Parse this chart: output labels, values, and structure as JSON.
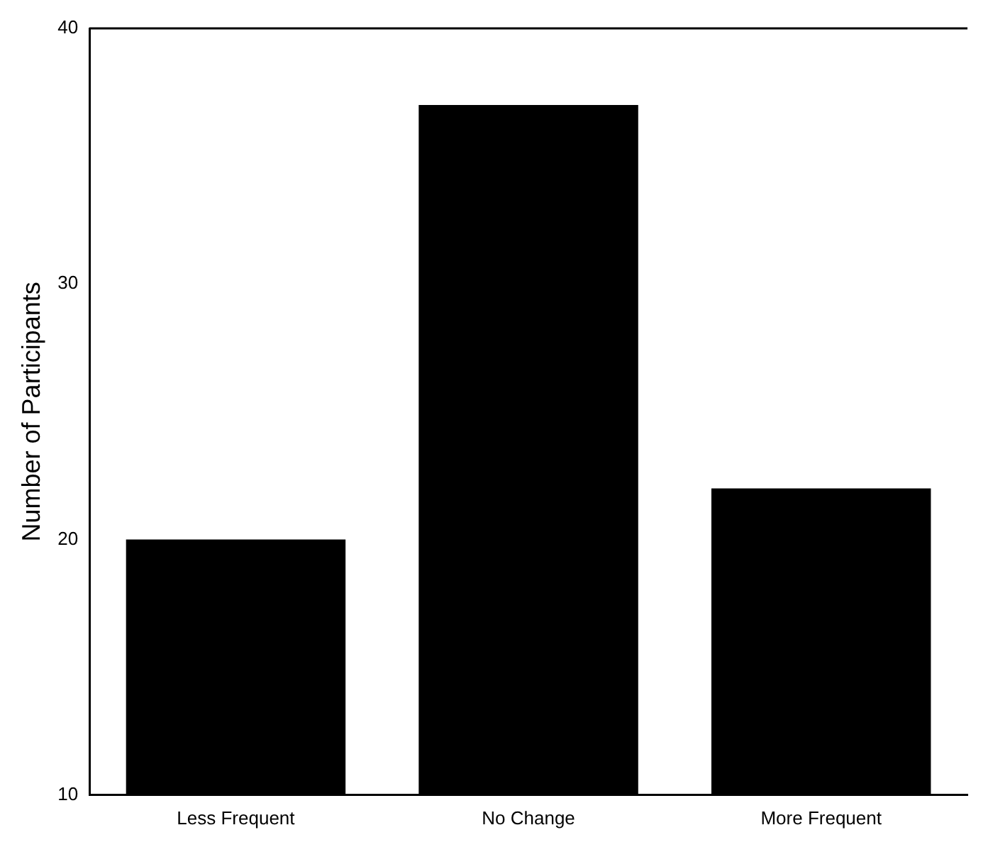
{
  "chart_data": {
    "type": "bar",
    "ylabel": "Number of Participants",
    "categories": [
      "Less Frequent",
      "No Change",
      "More Frequent"
    ],
    "values": [
      20,
      37,
      22
    ],
    "color": "#000000",
    "ylim": [
      10,
      40
    ],
    "yticks": [
      10,
      20,
      30,
      40
    ],
    "grid": false,
    "legend": false
  }
}
